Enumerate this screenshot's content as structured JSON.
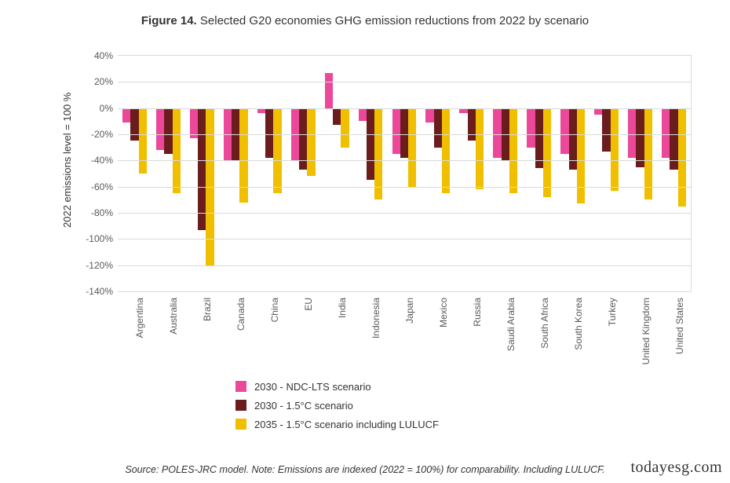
{
  "title_prefix": "Figure 14.",
  "title_rest": " Selected G20 economies GHG emission reductions from 2022 by scenario",
  "ylabel": "2022 emissions level = 100 %",
  "footnote": "Source: POLES-JRC model. Note: Emissions are indexed (2022 = 100%) for comparability. Including LULUCF.",
  "watermark": "todayesg.com",
  "chart": {
    "type": "bar",
    "ylim": [
      -140,
      40
    ],
    "ytick_step": 20,
    "ytick_labels": [
      "40%",
      "20%",
      "0%",
      "-20%",
      "-40%",
      "-60%",
      "-80%",
      "-100%",
      "-120%",
      "-140%"
    ],
    "grid_color": "#d9d9d9",
    "background_color": "#ffffff",
    "bar_width": 0.24,
    "label_fontsize": 12,
    "title_fontsize": 15,
    "categories": [
      "Argentina",
      "Australia",
      "Brazil",
      "Canada",
      "China",
      "EU",
      "India",
      "Indonesia",
      "Japan",
      "Mexico",
      "Russia",
      "Saudi Arabia",
      "South Africa",
      "South Korea",
      "Turkey",
      "United Kingdom",
      "United States"
    ],
    "series": [
      {
        "name": "2030 - NDC-LTS scenario",
        "color": "#ec4899",
        "values": [
          -11,
          -32,
          -23,
          -40,
          -4,
          -40,
          27,
          -10,
          -35,
          -11,
          -4,
          -38,
          -30,
          -35,
          -5,
          -38,
          -38
        ]
      },
      {
        "name": "2030 - 1.5°C scenario",
        "color": "#6b1d1d",
        "values": [
          -25,
          -35,
          -93,
          -40,
          -38,
          -47,
          -13,
          -55,
          -38,
          -30,
          -25,
          -40,
          -46,
          -47,
          -33,
          -45,
          -47
        ]
      },
      {
        "name": "2035 - 1.5°C scenario including LULUCF",
        "color": "#f0c000",
        "values": [
          -50,
          -65,
          -120,
          -72,
          -65,
          -52,
          -30,
          -70,
          -60,
          -65,
          -62,
          -65,
          -68,
          -73,
          -63,
          -70,
          -75
        ]
      }
    ]
  }
}
